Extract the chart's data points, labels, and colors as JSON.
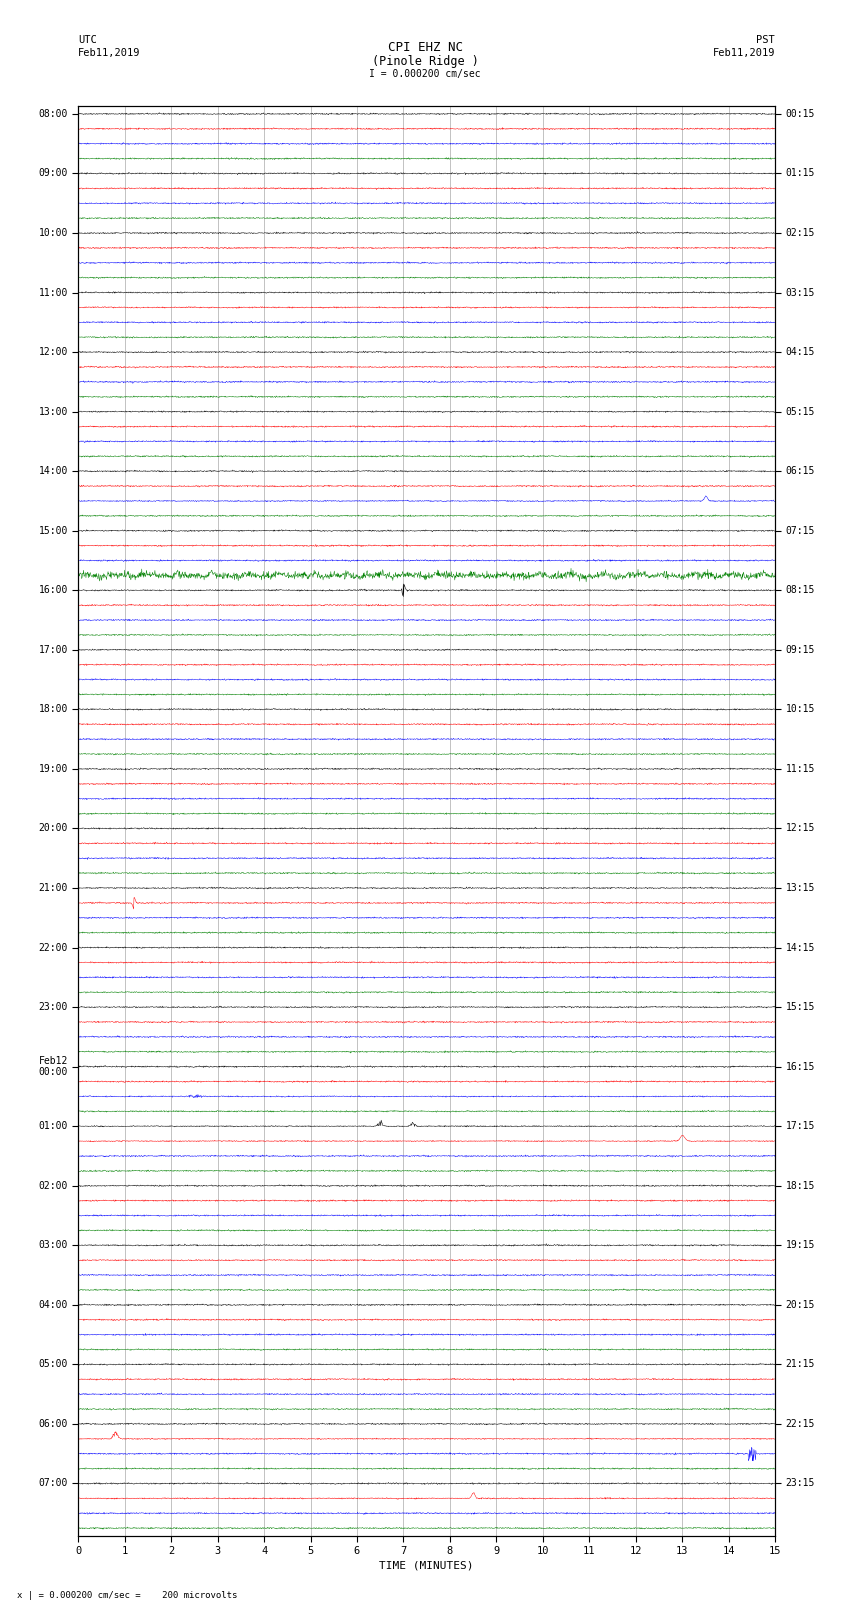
{
  "title_line1": "CPI EHZ NC",
  "title_line2": "(Pinole Ridge )",
  "scale_text": "I = 0.000200 cm/sec",
  "left_header_line1": "UTC",
  "left_header_line2": "Feb11,2019",
  "right_header_line1": "PST",
  "right_header_line2": "Feb11,2019",
  "bottom_label": "TIME (MINUTES)",
  "bottom_note": "x | = 0.000200 cm/sec =    200 microvolts",
  "utc_labels": [
    "08:00",
    "09:00",
    "10:00",
    "11:00",
    "12:00",
    "13:00",
    "14:00",
    "15:00",
    "16:00",
    "17:00",
    "18:00",
    "19:00",
    "20:00",
    "21:00",
    "22:00",
    "23:00",
    "Feb12\n00:00",
    "01:00",
    "02:00",
    "03:00",
    "04:00",
    "05:00",
    "06:00",
    "07:00"
  ],
  "pst_labels": [
    "00:15",
    "01:15",
    "02:15",
    "03:15",
    "04:15",
    "05:15",
    "06:15",
    "07:15",
    "08:15",
    "09:15",
    "10:15",
    "11:15",
    "12:15",
    "13:15",
    "14:15",
    "15:15",
    "16:15",
    "17:15",
    "18:15",
    "19:15",
    "20:15",
    "21:15",
    "22:15",
    "23:15"
  ],
  "n_hours": 24,
  "traces_per_hour": 4,
  "n_points": 1800,
  "colors_cycle": [
    "black",
    "red",
    "blue",
    "green"
  ],
  "bg_color": "white",
  "grid_color": "#aaaaaa",
  "fig_width": 8.5,
  "fig_height": 16.13,
  "xmin": 0,
  "xmax": 15,
  "base_noise": 0.018,
  "base_amp_scale": 0.38
}
